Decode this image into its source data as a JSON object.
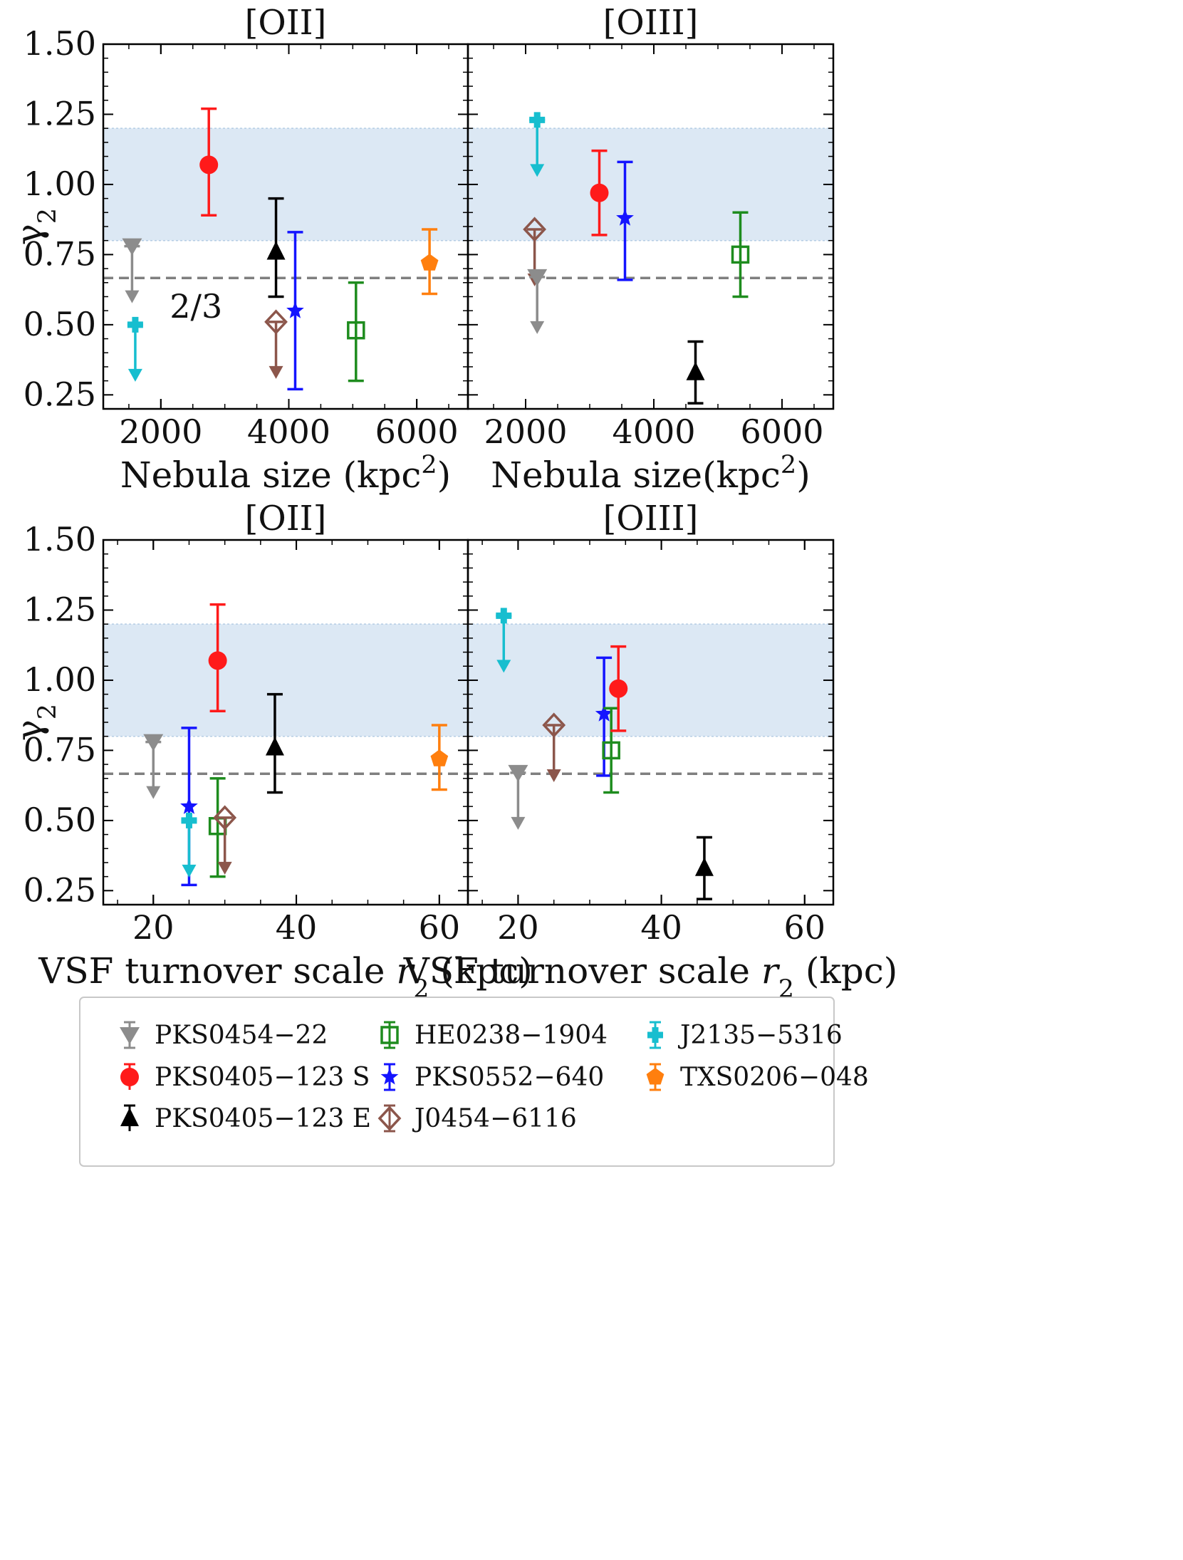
{
  "figure": {
    "legend_placement": "bottom-center",
    "legend_columns": 3
  },
  "series_styles": [
    {
      "name": "PKS0454−22",
      "color": "#8c8c8c",
      "marker": "triangle-down"
    },
    {
      "name": "PKS0405−123 S",
      "color": "#ff1a1a",
      "marker": "circle"
    },
    {
      "name": "PKS0405−123 E",
      "color": "#000000",
      "marker": "triangle-up"
    },
    {
      "name": "HE0238−1904",
      "color": "#1e8c1e",
      "marker": "square-open"
    },
    {
      "name": "PKS0552−640",
      "color": "#1414ff",
      "marker": "star"
    },
    {
      "name": "J0454−6116",
      "color": "#8c564b",
      "marker": "diamond-open"
    },
    {
      "name": "J2135−5316",
      "color": "#17becf",
      "marker": "plus"
    },
    {
      "name": "TXS0206−048",
      "color": "#ff7f0e",
      "marker": "pentagon"
    }
  ],
  "chart_data": [
    {
      "type": "scatter",
      "title": "[OII]",
      "xlabel": "Nebula size (kpc²)",
      "ylabel": "γ₂",
      "xlim": [
        1100,
        6800
      ],
      "ylim": [
        0.2,
        1.5
      ],
      "xticks": [
        2000,
        4000,
        6000
      ],
      "yticks": [
        0.25,
        0.5,
        0.75,
        1.0,
        1.25,
        1.5
      ],
      "ytick_labels": [
        "0.25",
        "0.50",
        "0.75",
        "1.00",
        "1.25",
        "1.50"
      ],
      "shaded_band": [
        0.8,
        1.2
      ],
      "reference_line": {
        "y": 0.6667,
        "label": "2/3"
      },
      "points": [
        {
          "series": "PKS0454−22",
          "x": 1550,
          "y": 0.78,
          "upper_limit": true
        },
        {
          "series": "J2135−5316",
          "x": 1600,
          "y": 0.5,
          "upper_limit": true
        },
        {
          "series": "PKS0405−123 S",
          "x": 2750,
          "y": 1.07,
          "yerr": [
            0.18,
            0.2
          ]
        },
        {
          "series": "PKS0405−123 E",
          "x": 3800,
          "y": 0.76,
          "yerr": [
            0.16,
            0.19
          ]
        },
        {
          "series": "J0454−6116",
          "x": 3800,
          "y": 0.51,
          "upper_limit": true
        },
        {
          "series": "PKS0552−640",
          "x": 4100,
          "y": 0.55,
          "yerr": [
            0.28,
            0.28
          ]
        },
        {
          "series": "HE0238−1904",
          "x": 5050,
          "y": 0.48,
          "yerr": [
            0.18,
            0.17
          ]
        },
        {
          "series": "TXS0206−048",
          "x": 6200,
          "y": 0.72,
          "yerr": [
            0.11,
            0.12
          ]
        }
      ]
    },
    {
      "type": "scatter",
      "title": "[OIII]",
      "xlabel": "Nebula size(kpc²)",
      "ylabel": "",
      "xlim": [
        1100,
        6800
      ],
      "ylim": [
        0.2,
        1.5
      ],
      "xticks": [
        2000,
        4000,
        6000
      ],
      "yticks": [
        0.25,
        0.5,
        0.75,
        1.0,
        1.25,
        1.5
      ],
      "ytick_labels": [],
      "shaded_band": [
        0.8,
        1.2
      ],
      "reference_line": {
        "y": 0.6667,
        "label": ""
      },
      "points": [
        {
          "series": "J2135−5316",
          "x": 2180,
          "y": 1.23,
          "upper_limit": true
        },
        {
          "series": "J0454−6116",
          "x": 2140,
          "y": 0.84,
          "upper_limit": true
        },
        {
          "series": "PKS0454−22",
          "x": 2180,
          "y": 0.67,
          "upper_limit": true
        },
        {
          "series": "PKS0405−123 S",
          "x": 3150,
          "y": 0.97,
          "yerr": [
            0.15,
            0.15
          ]
        },
        {
          "series": "PKS0552−640",
          "x": 3550,
          "y": 0.88,
          "yerr": [
            0.22,
            0.2
          ]
        },
        {
          "series": "HE0238−1904",
          "x": 5350,
          "y": 0.75,
          "yerr": [
            0.15,
            0.15
          ]
        },
        {
          "series": "PKS0405−123 E",
          "x": 4650,
          "y": 0.33,
          "yerr": [
            0.11,
            0.11
          ]
        }
      ]
    },
    {
      "type": "scatter",
      "title": "[OII]",
      "xlabel": "VSF turnover scale r₂ (kpc)",
      "ylabel": "γ₂",
      "xlim": [
        13,
        64
      ],
      "ylim": [
        0.2,
        1.5
      ],
      "xticks": [
        20,
        40,
        60
      ],
      "yticks": [
        0.25,
        0.5,
        0.75,
        1.0,
        1.25,
        1.5
      ],
      "ytick_labels": [
        "0.25",
        "0.50",
        "0.75",
        "1.00",
        "1.25",
        "1.50"
      ],
      "shaded_band": [
        0.8,
        1.2
      ],
      "reference_line": {
        "y": 0.6667,
        "label": ""
      },
      "points": [
        {
          "series": "PKS0454−22",
          "x": 20,
          "y": 0.78,
          "upper_limit": true
        },
        {
          "series": "PKS0552−640",
          "x": 25,
          "y": 0.55,
          "yerr": [
            0.28,
            0.28
          ]
        },
        {
          "series": "J2135−5316",
          "x": 25,
          "y": 0.5,
          "upper_limit": true
        },
        {
          "series": "PKS0405−123 S",
          "x": 29,
          "y": 1.07,
          "yerr": [
            0.18,
            0.2
          ]
        },
        {
          "series": "HE0238−1904",
          "x": 29,
          "y": 0.48,
          "yerr": [
            0.18,
            0.17
          ]
        },
        {
          "series": "J0454−6116",
          "x": 30,
          "y": 0.51,
          "upper_limit": true
        },
        {
          "series": "PKS0405−123 E",
          "x": 37,
          "y": 0.76,
          "yerr": [
            0.16,
            0.19
          ]
        },
        {
          "series": "TXS0206−048",
          "x": 60,
          "y": 0.72,
          "yerr": [
            0.11,
            0.12
          ]
        }
      ]
    },
    {
      "type": "scatter",
      "title": "[OIII]",
      "xlabel": "VSF turnover scale r₂ (kpc)",
      "ylabel": "",
      "xlim": [
        13,
        64
      ],
      "ylim": [
        0.2,
        1.5
      ],
      "xticks": [
        20,
        40,
        60
      ],
      "yticks": [
        0.25,
        0.5,
        0.75,
        1.0,
        1.25,
        1.5
      ],
      "ytick_labels": [],
      "shaded_band": [
        0.8,
        1.2
      ],
      "reference_line": {
        "y": 0.6667,
        "label": ""
      },
      "points": [
        {
          "series": "J2135−5316",
          "x": 18,
          "y": 1.23,
          "upper_limit": true
        },
        {
          "series": "PKS0454−22",
          "x": 20,
          "y": 0.67,
          "upper_limit": true
        },
        {
          "series": "J0454−6116",
          "x": 25,
          "y": 0.84,
          "upper_limit": true
        },
        {
          "series": "PKS0552−640",
          "x": 32,
          "y": 0.88,
          "yerr": [
            0.22,
            0.2
          ]
        },
        {
          "series": "HE0238−1904",
          "x": 33,
          "y": 0.75,
          "yerr": [
            0.15,
            0.15
          ]
        },
        {
          "series": "PKS0405−123 S",
          "x": 34,
          "y": 0.97,
          "yerr": [
            0.15,
            0.15
          ]
        },
        {
          "series": "PKS0405−123 E",
          "x": 46,
          "y": 0.33,
          "yerr": [
            0.11,
            0.11
          ]
        }
      ]
    }
  ]
}
